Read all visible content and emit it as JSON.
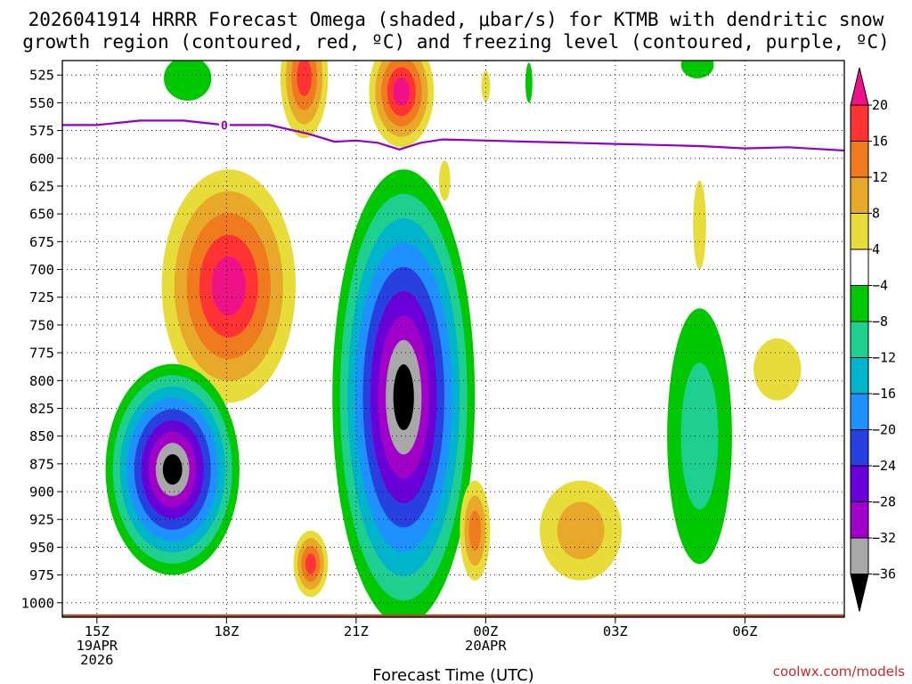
{
  "chart_data": {
    "type": "time-height contour",
    "title_lines": [
      "2026041914 HRRR Forecast Omega (shaded, μbar/s) for KTMB with dendritic snow",
      "growth region (contoured, red, ºC) and freezing level (contoured, purple, ºC)"
    ],
    "xlabel": "Forecast Time (UTC)",
    "credit": "coolwx.com/models",
    "colors": {
      "freezing_line": "#9000c8",
      "ground": "#a0522d",
      "credit": "#d0282a"
    },
    "x_range_hours": [
      14.2,
      32.3
    ],
    "x_ticks": [
      {
        "hour": 15,
        "lines": [
          "15Z",
          "19APR",
          "2026"
        ]
      },
      {
        "hour": 18,
        "lines": [
          "18Z"
        ]
      },
      {
        "hour": 21,
        "lines": [
          "21Z"
        ]
      },
      {
        "hour": 24,
        "lines": [
          "00Z",
          "20APR"
        ]
      },
      {
        "hour": 27,
        "lines": [
          "03Z"
        ]
      },
      {
        "hour": 30,
        "lines": [
          "06Z"
        ]
      }
    ],
    "y_levels_hpa": [
      525,
      550,
      575,
      600,
      625,
      650,
      675,
      700,
      725,
      750,
      775,
      800,
      825,
      850,
      875,
      900,
      925,
      950,
      975,
      1000
    ],
    "y_range_hpa": [
      512,
      1013
    ],
    "ground_hpa": 1012,
    "colorbar": {
      "labels": [
        "20",
        "16",
        "12",
        "8",
        "4",
        "−4",
        "−8",
        "−12",
        "−16",
        "−20",
        "−24",
        "−28",
        "−32",
        "−36"
      ],
      "segments": [
        {
          "from": 16,
          "to": 20,
          "color": "#ff3333"
        },
        {
          "from": 12,
          "to": 16,
          "color": "#f07a1e"
        },
        {
          "from": 8,
          "to": 12,
          "color": "#e8a92a"
        },
        {
          "from": 4,
          "to": 8,
          "color": "#e8dc3a"
        },
        {
          "from": -4,
          "to": 4,
          "color": "#ffffff"
        },
        {
          "from": -8,
          "to": -4,
          "color": "#00c800"
        },
        {
          "from": -12,
          "to": -8,
          "color": "#1fcf8f"
        },
        {
          "from": -16,
          "to": -12,
          "color": "#00b4cc"
        },
        {
          "from": -20,
          "to": -16,
          "color": "#1e90ff"
        },
        {
          "from": -24,
          "to": -20,
          "color": "#2840e0"
        },
        {
          "from": -28,
          "to": -24,
          "color": "#6a00d8"
        },
        {
          "from": -32,
          "to": -28,
          "color": "#a000c8"
        },
        {
          "from": -36,
          "to": -32,
          "color": "#a8a8a8"
        }
      ],
      "over_color": "#ee1188",
      "under_color": "#000000"
    },
    "freezing_level": {
      "label": "0",
      "label_hour": 17.95,
      "points": [
        [
          14.2,
          570
        ],
        [
          15.0,
          570
        ],
        [
          16.0,
          566
        ],
        [
          17.0,
          566
        ],
        [
          17.95,
          570
        ],
        [
          19.0,
          570
        ],
        [
          19.9,
          578
        ],
        [
          20.5,
          585
        ],
        [
          21.0,
          584
        ],
        [
          21.5,
          586
        ],
        [
          22.0,
          592
        ],
        [
          22.5,
          586
        ],
        [
          23.0,
          583
        ],
        [
          24.0,
          584
        ],
        [
          25.0,
          585
        ],
        [
          26.0,
          586
        ],
        [
          27.0,
          587
        ],
        [
          28.0,
          588
        ],
        [
          29.0,
          589
        ],
        [
          30.0,
          591
        ],
        [
          31.0,
          590
        ],
        [
          32.3,
          593
        ]
      ]
    },
    "omega_blobs": [
      {
        "name": "upper-left-green",
        "hour": 17.1,
        "hpa": 528,
        "rh": 0.55,
        "rp": 20,
        "values": [
          -6
        ]
      },
      {
        "name": "top-center-plume",
        "hour": 19.8,
        "hpa": 527,
        "rh": 0.55,
        "rp": 55,
        "values": [
          6,
          10,
          14,
          18
        ]
      },
      {
        "name": "top-right-plume",
        "hour": 22.05,
        "hpa": 540,
        "rh": 0.75,
        "rp": 50,
        "values": [
          6,
          10,
          14,
          18,
          22
        ]
      },
      {
        "name": "upper-small-yellow",
        "hour": 24.0,
        "hpa": 535,
        "rh": 0.1,
        "rp": 14,
        "values": [
          6
        ]
      },
      {
        "name": "upper-small-green",
        "hour": 25.0,
        "hpa": 532,
        "rh": 0.08,
        "rp": 18,
        "values": [
          -6
        ]
      },
      {
        "name": "top-right-green",
        "hour": 28.9,
        "hpa": 516,
        "rh": 0.38,
        "rp": 12,
        "values": [
          -6
        ]
      },
      {
        "name": "left-ascent",
        "hour": 18.05,
        "hpa": 715,
        "rh": 1.55,
        "rp": 105,
        "values": [
          6,
          10,
          14,
          18,
          22
        ]
      },
      {
        "name": "left-descent-core",
        "hour": 16.75,
        "hpa": 880,
        "rh": 1.55,
        "rp": 95,
        "values": [
          -6,
          -10,
          -14,
          -18,
          -22,
          -26,
          -30,
          -34,
          -38
        ]
      },
      {
        "name": "center-descent",
        "hour": 22.1,
        "hpa": 815,
        "rh": 1.65,
        "rp": 205,
        "values": [
          -6,
          -10,
          -14,
          -18,
          -22,
          -26,
          -30,
          -34,
          -38
        ]
      },
      {
        "name": "lower-left-ascent",
        "hour": 19.95,
        "hpa": 965,
        "rh": 0.4,
        "rp": 30,
        "values": [
          6,
          10,
          14,
          18
        ]
      },
      {
        "name": "lower-right-ascent",
        "hour": 23.75,
        "hpa": 935,
        "rh": 0.35,
        "rp": 45,
        "values": [
          6,
          10,
          14
        ]
      },
      {
        "name": "mid-right-small",
        "hour": 23.05,
        "hpa": 620,
        "rh": 0.13,
        "rp": 18,
        "values": [
          6
        ]
      },
      {
        "name": "right-yellow-tongue",
        "hour": 26.2,
        "hpa": 935,
        "rh": 0.95,
        "rp": 45,
        "values": [
          6,
          10
        ]
      },
      {
        "name": "right-green",
        "hour": 28.95,
        "hpa": 850,
        "rh": 0.75,
        "rp": 115,
        "values": [
          -6,
          -10
        ]
      },
      {
        "name": "far-right-yellow",
        "hour": 30.75,
        "hpa": 790,
        "rh": 0.55,
        "rp": 28,
        "values": [
          6
        ]
      },
      {
        "name": "right-sliver-yellow",
        "hour": 28.95,
        "hpa": 660,
        "rh": 0.15,
        "rp": 40,
        "values": [
          6
        ]
      }
    ]
  }
}
